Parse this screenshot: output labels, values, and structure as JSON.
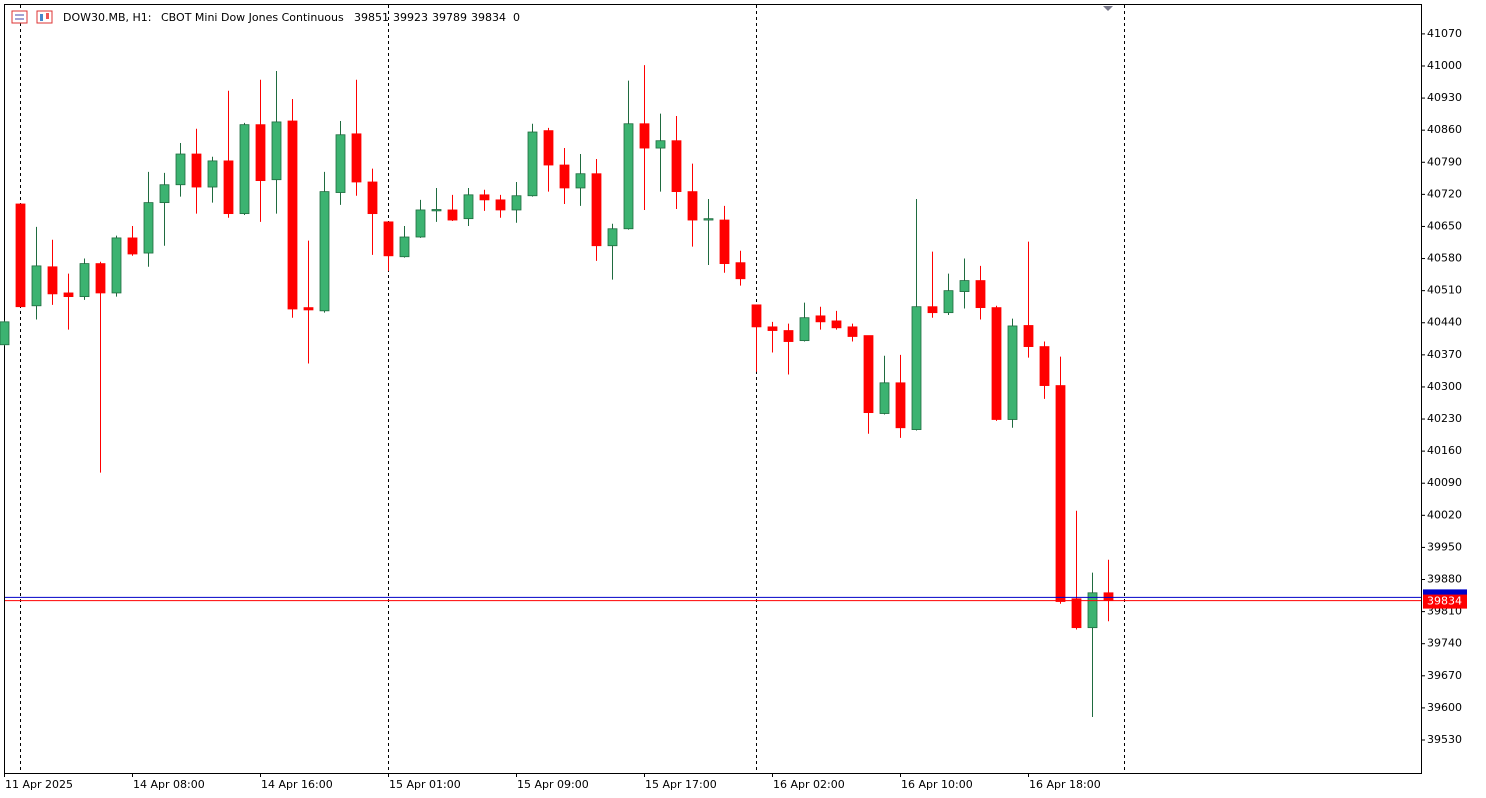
{
  "chart_data": {
    "type": "candlestick",
    "title": "DOW30.MB, H1:",
    "subtitle": "CBOT Mini Dow Jones Continuous",
    "header_values": [
      39851,
      39923,
      39789,
      39834,
      0
    ],
    "categories": [
      "11 Apr 2025",
      null,
      null,
      null,
      null,
      null,
      null,
      null,
      "14 Apr 08:00",
      null,
      null,
      null,
      null,
      null,
      null,
      null,
      "14 Apr 16:00",
      null,
      null,
      null,
      null,
      null,
      null,
      null,
      "15 Apr 01:00",
      null,
      null,
      null,
      null,
      null,
      null,
      null,
      "15 Apr 09:00",
      null,
      null,
      null,
      null,
      null,
      null,
      null,
      "15 Apr 17:00",
      null,
      null,
      null,
      null,
      null,
      null,
      null,
      "16 Apr 02:00",
      null,
      null,
      null,
      null,
      null,
      null,
      null,
      "16 Apr 10:00",
      null,
      null,
      null,
      null,
      null,
      null,
      null,
      "16 Apr 18:00",
      null,
      null,
      null,
      null,
      null
    ],
    "open": [
      40392,
      40699,
      40477,
      40562,
      40505,
      40497,
      40569,
      40505,
      40625,
      40592,
      40702,
      40741,
      40808,
      40736,
      40793,
      40678,
      40872,
      40752,
      40880,
      40473,
      40466,
      40724,
      40852,
      40747,
      40660,
      40584,
      40627,
      40684,
      40686,
      40667,
      40719,
      40708,
      40686,
      40717,
      40859,
      40784,
      40734,
      40765,
      40608,
      40645,
      40874,
      40821,
      40837,
      40726,
      40664,
      40664,
      40571,
      40479,
      40431,
      40423,
      40401,
      40455,
      40444,
      40431,
      40412,
      40242,
      40309,
      40207,
      40475,
      40462,
      40508,
      40532,
      40473,
      40229,
      40434,
      40388,
      40303,
      39838,
      39775,
      39851
    ],
    "high": [
      40445,
      40700,
      40649,
      40621,
      40547,
      40580,
      40573,
      40630,
      40651,
      40769,
      40767,
      40832,
      40863,
      40802,
      40946,
      40876,
      40970,
      40989,
      40928,
      40619,
      40769,
      40880,
      40970,
      40776,
      40660,
      40651,
      40708,
      40734,
      40719,
      40734,
      40730,
      40719,
      40747,
      40874,
      40865,
      40821,
      40808,
      40797,
      40656,
      40968,
      41002,
      40896,
      40891,
      40787,
      40710,
      40695,
      40597,
      40479,
      40442,
      40438,
      40484,
      40475,
      40466,
      40438,
      40412,
      40368,
      40370,
      40710,
      40595,
      40547,
      40580,
      40564,
      40477,
      40449,
      40617,
      40399,
      40366,
      40030,
      39895,
      39923
    ],
    "low": [
      40390,
      40475,
      40447,
      40479,
      40425,
      40490,
      40113,
      40497,
      40586,
      40562,
      40608,
      40715,
      40678,
      40702,
      40669,
      40675,
      40660,
      40678,
      40451,
      40351,
      40462,
      40697,
      40717,
      40588,
      40553,
      40582,
      40625,
      40660,
      40662,
      40651,
      40684,
      40669,
      40658,
      40715,
      40726,
      40699,
      40695,
      40575,
      40534,
      40643,
      40686,
      40726,
      40688,
      40606,
      40566,
      40549,
      40521,
      40333,
      40375,
      40327,
      40399,
      40425,
      40425,
      40399,
      40198,
      40240,
      40189,
      40205,
      40451,
      40457,
      40471,
      40447,
      40226,
      40211,
      40364,
      40274,
      39827,
      39771,
      39580,
      39789
    ],
    "close": [
      40442,
      40475,
      40564,
      40503,
      40497,
      40569,
      40505,
      40625,
      40590,
      40702,
      40741,
      40808,
      40736,
      40793,
      40678,
      40872,
      40750,
      40878,
      40470,
      40468,
      40726,
      40850,
      40747,
      40678,
      40586,
      40627,
      40686,
      40687,
      40664,
      40719,
      40708,
      40686,
      40717,
      40856,
      40784,
      40734,
      40765,
      40608,
      40645,
      40874,
      40821,
      40837,
      40726,
      40664,
      40667,
      40569,
      40536,
      40431,
      40423,
      40399,
      40451,
      40442,
      40429,
      40410,
      40244,
      40309,
      40211,
      40475,
      40462,
      40510,
      40532,
      40473,
      40229,
      40433,
      40388,
      40303,
      39832,
      39775,
      39851,
      39834
    ],
    "up_color": "#3cb371",
    "down_color": "#ff0000",
    "bid": 39834,
    "bid_color": "#ff0000",
    "ask": 39841,
    "ask_color": "#0000c8",
    "ylim": [
      39458,
      41133
    ],
    "yticks": [
      41070,
      41000,
      40930,
      40860,
      40790,
      40720,
      40650,
      40580,
      40510,
      40440,
      40370,
      40300,
      40230,
      40160,
      40090,
      40020,
      39950,
      39880,
      39810,
      39740,
      39670,
      39600,
      39530
    ]
  }
}
